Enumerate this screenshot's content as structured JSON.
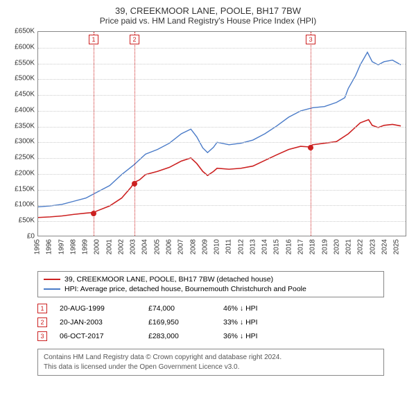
{
  "title": "39, CREEKMOOR LANE, POOLE, BH17 7BW",
  "subtitle": "Price paid vs. HM Land Registry's House Price Index (HPI)",
  "chart": {
    "type": "line",
    "background_color": "#ffffff",
    "grid_color": "#cccccc",
    "axis_color": "#888888",
    "text_color": "#333333",
    "currency_prefix": "£",
    "y_axis": {
      "min": 0,
      "max": 650000,
      "step": 50000,
      "suffix": "K",
      "divisor": 1000
    },
    "x_axis": {
      "min": 1995,
      "max": 2025.8,
      "ticks": [
        1995,
        1996,
        1997,
        1998,
        1999,
        2000,
        2001,
        2002,
        2003,
        2004,
        2005,
        2006,
        2007,
        2008,
        2009,
        2010,
        2011,
        2012,
        2013,
        2014,
        2015,
        2016,
        2017,
        2018,
        2019,
        2020,
        2021,
        2022,
        2023,
        2024,
        2025
      ]
    },
    "series": [
      {
        "id": "property",
        "label": "39, CREEKMOOR LANE, POOLE, BH17 7BW (detached house)",
        "color": "#cc2020",
        "width": 1.6,
        "data": [
          [
            1995,
            58000
          ],
          [
            1996,
            60000
          ],
          [
            1997,
            63000
          ],
          [
            1998,
            68000
          ],
          [
            1999,
            72000
          ],
          [
            1999.63,
            74000
          ],
          [
            2000,
            80000
          ],
          [
            2001,
            95000
          ],
          [
            2002,
            120000
          ],
          [
            2002.8,
            155000
          ],
          [
            2003.05,
            169950
          ],
          [
            2003.5,
            178000
          ],
          [
            2004,
            195000
          ],
          [
            2005,
            205000
          ],
          [
            2006,
            218000
          ],
          [
            2007,
            238000
          ],
          [
            2007.8,
            248000
          ],
          [
            2008.3,
            230000
          ],
          [
            2008.8,
            205000
          ],
          [
            2009.2,
            192000
          ],
          [
            2009.7,
            205000
          ],
          [
            2010,
            215000
          ],
          [
            2011,
            212000
          ],
          [
            2012,
            215000
          ],
          [
            2013,
            222000
          ],
          [
            2014,
            240000
          ],
          [
            2015,
            258000
          ],
          [
            2016,
            275000
          ],
          [
            2017,
            285000
          ],
          [
            2017.76,
            283000
          ],
          [
            2018,
            290000
          ],
          [
            2019,
            295000
          ],
          [
            2020,
            300000
          ],
          [
            2021,
            325000
          ],
          [
            2022,
            360000
          ],
          [
            2022.7,
            370000
          ],
          [
            2023,
            352000
          ],
          [
            2023.5,
            345000
          ],
          [
            2024,
            352000
          ],
          [
            2024.7,
            355000
          ],
          [
            2025.4,
            350000
          ]
        ]
      },
      {
        "id": "hpi",
        "label": "HPI: Average price, detached house, Bournemouth Christchurch and Poole",
        "color": "#4a7bc8",
        "width": 1.4,
        "data": [
          [
            1995,
            92000
          ],
          [
            1996,
            95000
          ],
          [
            1997,
            100000
          ],
          [
            1998,
            110000
          ],
          [
            1999,
            120000
          ],
          [
            2000,
            140000
          ],
          [
            2001,
            160000
          ],
          [
            2002,
            195000
          ],
          [
            2003,
            225000
          ],
          [
            2004,
            260000
          ],
          [
            2005,
            275000
          ],
          [
            2006,
            295000
          ],
          [
            2007,
            325000
          ],
          [
            2007.8,
            340000
          ],
          [
            2008.3,
            315000
          ],
          [
            2008.8,
            280000
          ],
          [
            2009.2,
            265000
          ],
          [
            2009.7,
            282000
          ],
          [
            2010,
            298000
          ],
          [
            2011,
            290000
          ],
          [
            2012,
            295000
          ],
          [
            2013,
            305000
          ],
          [
            2014,
            325000
          ],
          [
            2015,
            350000
          ],
          [
            2016,
            378000
          ],
          [
            2017,
            398000
          ],
          [
            2018,
            408000
          ],
          [
            2019,
            412000
          ],
          [
            2020,
            425000
          ],
          [
            2020.7,
            440000
          ],
          [
            2021,
            470000
          ],
          [
            2021.6,
            510000
          ],
          [
            2022,
            545000
          ],
          [
            2022.6,
            585000
          ],
          [
            2023,
            555000
          ],
          [
            2023.5,
            545000
          ],
          [
            2024,
            555000
          ],
          [
            2024.7,
            560000
          ],
          [
            2025.4,
            545000
          ]
        ]
      }
    ],
    "vlines": [
      {
        "n": "1",
        "x": 1999.63
      },
      {
        "n": "2",
        "x": 2003.05
      },
      {
        "n": "3",
        "x": 2017.76
      }
    ],
    "markers": [
      {
        "series": "property",
        "x": 1999.63,
        "y": 74000,
        "color": "#cc2020"
      },
      {
        "series": "property",
        "x": 2003.05,
        "y": 169950,
        "color": "#cc2020"
      },
      {
        "series": "property",
        "x": 2017.76,
        "y": 283000,
        "color": "#cc2020"
      }
    ]
  },
  "legend": {
    "items": [
      {
        "color": "#cc2020",
        "label_ref": "chart.series.0.label"
      },
      {
        "color": "#4a7bc8",
        "label_ref": "chart.series.1.label"
      }
    ]
  },
  "transactions": [
    {
      "n": "1",
      "date": "20-AUG-1999",
      "price": "£74,000",
      "delta": "46% ↓ HPI"
    },
    {
      "n": "2",
      "date": "20-JAN-2003",
      "price": "£169,950",
      "delta": "33% ↓ HPI"
    },
    {
      "n": "3",
      "date": "06-OCT-2017",
      "price": "£283,000",
      "delta": "36% ↓ HPI"
    }
  ],
  "footer": {
    "line1": "Contains HM Land Registry data © Crown copyright and database right 2024.",
    "line2": "This data is licensed under the Open Government Licence v3.0."
  }
}
